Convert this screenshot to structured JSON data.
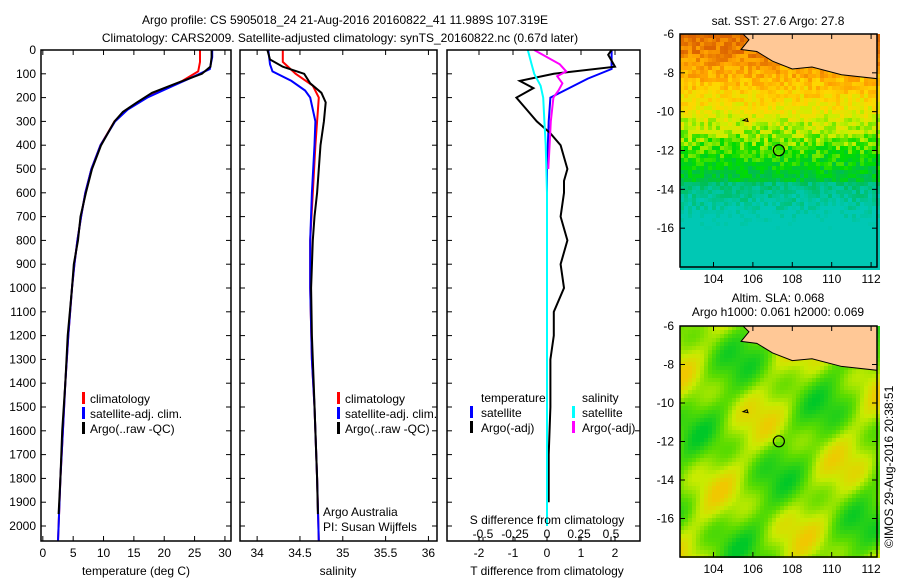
{
  "title_line1": "Argo profile: CS 5905018_24 21-Aug-2016 20160822_41 11.989S 107.319E",
  "title_line2": "Climatology: CARS2009. Satellite-adjusted climatology: synTS_20160822.nc (0.67d later)",
  "credit": "©IMOS 29-Aug-2016 20:38:51",
  "colors": {
    "climatology": "#ff0000",
    "satellite": "#0000ff",
    "argo": "#000000",
    "sal_satellite": "#00ffff",
    "sal_argo": "#ff00ff",
    "land": "#ffc896"
  },
  "chart_data": [
    {
      "type": "line",
      "id": "temperature",
      "xlabel": "temperature (deg C)",
      "ylabel": "",
      "xlim": [
        -0.3,
        31
      ],
      "ylim": [
        2063,
        0
      ],
      "xticks": [
        "0",
        "5",
        "10",
        "15",
        "20",
        "25",
        "30"
      ],
      "xtick_values": [
        0,
        5,
        10,
        15,
        20,
        25,
        30
      ],
      "yticks": [
        "0",
        "100",
        "200",
        "300",
        "400",
        "500",
        "600",
        "700",
        "800",
        "900",
        "1000",
        "1100",
        "1200",
        "1300",
        "1400",
        "1500",
        "1600",
        "1700",
        "1800",
        "1900",
        "2000"
      ],
      "ytick_values": [
        0,
        100,
        200,
        300,
        400,
        500,
        600,
        700,
        800,
        900,
        1000,
        1100,
        1200,
        1300,
        1400,
        1500,
        1600,
        1700,
        1800,
        1900,
        2000
      ],
      "legend": [
        "climatology",
        "satellite-adj. clim.",
        "Argo(..raw -QC)"
      ],
      "series": [
        {
          "name": "climatology",
          "color": "#ff0000",
          "depth": [
            0,
            50,
            90,
            130,
            170,
            200,
            250,
            300,
            400,
            500,
            600,
            700,
            800,
            900,
            1000,
            1200,
            1400,
            1600,
            1800,
            2000,
            2063
          ],
          "values": [
            25.9,
            25.9,
            25.6,
            23,
            19.5,
            17,
            13.8,
            11.8,
            9.5,
            8,
            7,
            6.3,
            5.7,
            5.2,
            4.8,
            4.2,
            3.7,
            3.3,
            2.9,
            2.6,
            2.5
          ]
        },
        {
          "name": "satellite-adj. clim.",
          "color": "#0000ff",
          "depth": [
            0,
            30,
            80,
            110,
            150,
            200,
            250,
            300,
            400,
            500,
            600,
            700,
            800,
            900,
            1000,
            1200,
            1400,
            1600,
            1800,
            2000,
            2063
          ],
          "values": [
            27.9,
            27.9,
            27.5,
            25,
            21.5,
            17.2,
            14,
            11.9,
            9.5,
            8,
            7,
            6.3,
            5.7,
            5.2,
            4.8,
            4.2,
            3.7,
            3.3,
            2.9,
            2.6,
            2.5
          ]
        },
        {
          "name": "Argo(..raw -QC)",
          "color": "#000000",
          "depth": [
            0,
            30,
            70,
            100,
            140,
            180,
            220,
            260,
            300,
            400,
            500,
            600,
            700,
            800,
            900,
            1000,
            1200,
            1400,
            1600,
            1800,
            1950
          ],
          "values": [
            27.8,
            27.8,
            27.6,
            26.2,
            22,
            18,
            15.5,
            13.2,
            11.8,
            9.6,
            8.1,
            7.1,
            6.2,
            5.8,
            5.1,
            4.8,
            4.1,
            3.7,
            3.2,
            2.9,
            2.6
          ]
        }
      ]
    },
    {
      "type": "line",
      "id": "salinity",
      "xlabel": "salinity",
      "xlim": [
        33.8,
        36.1
      ],
      "ylim": [
        2063,
        0
      ],
      "xticks": [
        "34",
        "34.5",
        "35",
        "35.5",
        "36"
      ],
      "xtick_values": [
        34,
        34.5,
        35,
        35.5,
        36
      ],
      "legend": [
        "climatology",
        "satellite-adj. clim.",
        "Argo(..raw -QC)"
      ],
      "annotation": [
        "Argo Australia",
        "PI: Susan Wijffels"
      ],
      "series": [
        {
          "name": "climatology",
          "color": "#ff0000",
          "depth": [
            0,
            50,
            100,
            150,
            200,
            300,
            400,
            600,
            800,
            1000,
            1300,
            1500,
            1800,
            2063
          ],
          "values": [
            34.3,
            34.3,
            34.45,
            34.65,
            34.72,
            34.7,
            34.68,
            34.65,
            34.62,
            34.62,
            34.64,
            34.67,
            34.7,
            34.72
          ]
        },
        {
          "name": "satellite-adj. clim.",
          "color": "#0000ff",
          "depth": [
            0,
            60,
            90,
            130,
            170,
            200,
            300,
            400,
            600,
            800,
            1000,
            1300,
            1500,
            1800,
            2063
          ],
          "values": [
            34.13,
            34.15,
            34.18,
            34.4,
            34.56,
            34.62,
            34.68,
            34.67,
            34.64,
            34.62,
            34.62,
            34.64,
            34.67,
            34.7,
            34.72
          ]
        },
        {
          "name": "Argo(..raw -QC)",
          "color": "#000000",
          "depth": [
            0,
            40,
            70,
            100,
            140,
            180,
            220,
            300,
            400,
            500,
            600,
            700,
            800,
            1000,
            1200,
            1400,
            1600,
            1800,
            1950
          ],
          "values": [
            34.12,
            34.15,
            34.3,
            34.55,
            34.62,
            34.75,
            34.8,
            34.78,
            34.74,
            34.72,
            34.7,
            34.67,
            34.65,
            34.63,
            34.64,
            34.66,
            34.68,
            34.7,
            34.71
          ]
        }
      ]
    },
    {
      "type": "line",
      "id": "difference",
      "xlabel": "T difference from climatology",
      "x2label": "S difference from climatology",
      "xlim": [
        -2.94,
        2.74
      ],
      "ylim": [
        2063,
        0
      ],
      "xticks": [
        "-2",
        "-1",
        "0",
        "1",
        "2"
      ],
      "xtick_values": [
        -2,
        -1,
        0,
        1,
        2
      ],
      "x2ticks": [
        "-0.5",
        "-0.25",
        "0",
        "0.25",
        "0.5"
      ],
      "x2tick_values": [
        -0.5,
        -0.25,
        0,
        0.25,
        0.5
      ],
      "legend_temperature": {
        "title": "temperature",
        "items": [
          "satellite",
          "Argo(-adj)"
        ]
      },
      "legend_salinity": {
        "title": "salinity",
        "items": [
          "satellite",
          "Argo(-adj)"
        ]
      },
      "series": [
        {
          "name": "temperature satellite",
          "unit": "T",
          "color": "#0000ff",
          "depth": [
            0,
            80,
            120,
            200,
            300,
            500,
            800,
            1200,
            2000
          ],
          "values": [
            1.9,
            1.9,
            1.2,
            0.1,
            0.05,
            0,
            0,
            0,
            0
          ]
        },
        {
          "name": "temperature Argo(-adj)",
          "unit": "T",
          "color": "#000000",
          "depth": [
            0,
            20,
            70,
            100,
            130,
            160,
            200,
            250,
            300,
            350,
            400,
            450,
            500,
            550,
            600,
            700,
            800,
            900,
            1000,
            1100,
            1200,
            1300,
            1400,
            1500,
            1700,
            1900
          ],
          "values": [
            1.9,
            1.8,
            2,
            0.2,
            -0.8,
            -0.4,
            -0.9,
            -0.6,
            -0.3,
            0.1,
            0.4,
            0.5,
            0.6,
            0.5,
            0.5,
            0.4,
            0.6,
            0.4,
            0.5,
            0.2,
            0.2,
            0.1,
            0.1,
            0.1,
            0.05,
            0.05
          ]
        },
        {
          "name": "salinity satellite",
          "unit": "S",
          "color": "#00ffff",
          "depth": [
            0,
            60,
            100,
            150,
            200,
            300,
            400,
            600,
            800,
            1200,
            2000
          ],
          "values": [
            -0.15,
            -0.12,
            -0.1,
            -0.05,
            -0.03,
            -0.02,
            -0.01,
            0,
            0,
            0,
            0
          ]
        },
        {
          "name": "salinity Argo(-adj)",
          "unit": "S",
          "color": "#ff00ff",
          "depth": [
            0,
            60,
            90,
            110,
            140,
            170,
            200,
            250,
            300,
            400,
            500
          ],
          "values": [
            -0.1,
            0.1,
            0.15,
            0.08,
            0.12,
            0.09,
            0.05,
            0.04,
            0.03,
            0.02,
            0.01
          ]
        }
      ]
    },
    {
      "type": "heatmap",
      "id": "sst-map",
      "title": "sat. SST: 27.6 Argo: 27.8",
      "xlim": [
        102.3,
        112.3
      ],
      "ylim": [
        -18,
        -6
      ],
      "xticks": [
        "104",
        "106",
        "108",
        "110",
        "112"
      ],
      "xtick_values": [
        104,
        106,
        108,
        110,
        112
      ],
      "yticks": [
        "-6",
        "-8",
        "-10",
        "-12",
        "-14",
        "-16"
      ],
      "ytick_values": [
        -6,
        -8,
        -10,
        -12,
        -14,
        -16
      ],
      "marker": {
        "lon": 107.319,
        "lat": -11.989
      }
    },
    {
      "type": "heatmap",
      "id": "sla-map",
      "title_line1": "Altim. SLA: 0.068",
      "title_line2": "Argo h1000: 0.061 h2000: 0.069",
      "xlim": [
        102.3,
        112.3
      ],
      "ylim": [
        -18,
        -6
      ],
      "xticks": [
        "104",
        "106",
        "108",
        "110",
        "112"
      ],
      "xtick_values": [
        104,
        106,
        108,
        110,
        112
      ],
      "yticks": [
        "-6",
        "-8",
        "-10",
        "-12",
        "-14",
        "-16"
      ],
      "ytick_values": [
        -6,
        -8,
        -10,
        -12,
        -14,
        -16
      ],
      "marker": {
        "lon": 107.319,
        "lat": -11.989
      }
    }
  ]
}
